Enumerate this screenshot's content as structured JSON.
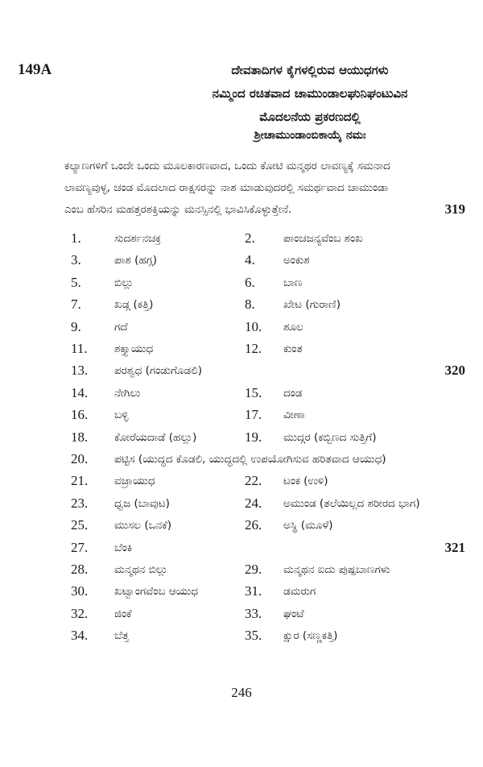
{
  "header": {
    "code": "149A",
    "title_lines": [
      "ದೇವತಾದಿಗಳ ಕೈಗಳಲ್ಲಿರುವ ಆಯುಧಗಳು",
      "ನಮ್ಮಿಂದ ರಚಿತವಾದ ಚಾಮುಂಡಾಲಘುನಿಘಂಟುವಿನ",
      "ಮೊದಲನೆಯ ಪ್ರಕರಣದಲ್ಲಿ",
      "ಶ್ರೀಚಾಮುಂಡಾಂಬಿಕಾಯೈ ನಮಃ"
    ]
  },
  "paragraph": {
    "lines": [
      "ಕಲ್ಯಾಣಗಳಿಗೆ ಒಂದೇ ಒಂದು ಮೂಲಕಾರಣವಾದ, ಒಂದು ಕೋಟಿ ಮನ್ಮಥರ ಲಾವಣ್ಯಕ್ಕೆ ಸಮನಾದ",
      "ಲಾವಣ್ಯವುಳ್ಳ, ಚಂಡ ಮೊದಲಾದ ರಾಕ್ಷಸರನ್ನು ನಾಶ ಮಾಡುವುದರಲ್ಲಿ ಸಮರ್ಥವಾದ ಚಾಮುಂಡಾ",
      "ಎಂಬ ಹೆಸರಿನ ಮಹತ್ತರಶಕ್ತಿಯನ್ನು ಮನಸ್ಸಿನಲ್ಲಿ ಭಾವಿಸಿಕೊಳ್ಳುತ್ತೇನೆ."
    ],
    "verse_no": "319"
  },
  "rows": [
    {
      "l": [
        "1.",
        "ಸುದರ್ಶನಚಕ್ರ"
      ],
      "r": [
        "2.",
        "ಪಾಂಚಜನ್ಯವೆಂಬ ಶಂಖ"
      ]
    },
    {
      "l": [
        "3.",
        "ಪಾಶ (ಹಗ್ಗ)"
      ],
      "r": [
        "4.",
        "ಅಂಕುಶ"
      ]
    },
    {
      "l": [
        "5.",
        "ಬಿಲ್ಲು"
      ],
      "r": [
        "6.",
        "ಬಾಣ"
      ]
    },
    {
      "l": [
        "7.",
        "ಖಡ್ಗ (ಕತ್ತಿ)"
      ],
      "r": [
        "8.",
        "ಖೇಟ (ಗುರಾಣಿ)"
      ]
    },
    {
      "l": [
        "9.",
        "ಗದೆ"
      ],
      "r": [
        "10.",
        "ಶೂಲ"
      ]
    },
    {
      "l": [
        "11.",
        "ಶಕ್ತ್ಯಾಯುಧ"
      ],
      "r": [
        "12.",
        "ಕುಂತ"
      ]
    },
    {
      "l": [
        "13.",
        "ಪರಶ್ವಧ (ಗಂಡುಗೊಡಲಿ)"
      ],
      "r": [
        "",
        ""
      ],
      "verse": "320"
    },
    {
      "l": [
        "14.",
        "ನೇಗಿಲು"
      ],
      "r": [
        "15.",
        "ದಂಡ"
      ]
    },
    {
      "l": [
        "16.",
        "ಬಳ್ಳಿ"
      ],
      "r": [
        "17.",
        "ವೀಣಾ"
      ]
    },
    {
      "l": [
        "18.",
        "ಕೋರೆಯದಾಡೆ (ಹಲ್ಲು)"
      ],
      "r": [
        "19.",
        "ಮುದ್ಗರ (ಕಬ್ಬಿಣದ ಸುತ್ತಿಗೆ)"
      ]
    },
    {
      "l": [
        "20.",
        "ಪಟ್ಟಿಸ (ಯುದ್ಧದ ಕೊಡಲಿ, ಯುದ್ಧದಲ್ಲಿ ಉಪಯೋಗಿಸುವ ಹರಿತವಾದ ಆಯುಧ)"
      ],
      "r": [
        "",
        ""
      ]
    },
    {
      "l": [
        "21.",
        "ವಜ್ರಾಯುಧ"
      ],
      "r": [
        "22.",
        "ಟಂಕ (ಉಳಿ)"
      ]
    },
    {
      "l": [
        "23.",
        "ಧ್ವಜ (ಬಾವುಟ)"
      ],
      "r": [
        "24.",
        "ಅಮುಂಡ (ತಲೆಯಿಲ್ಲದ ಶರೀರದ ಭಾಗ)"
      ]
    },
    {
      "l": [
        "25.",
        "ಮುಸಲ (ಒನಕೆ)"
      ],
      "r": [
        "26.",
        "ಅಸ್ಥಿ (ಮೂಳೆ)"
      ]
    },
    {
      "l": [
        "27.",
        "ಬೆಂಕಿ"
      ],
      "r": [
        "",
        ""
      ],
      "verse": "321"
    },
    {
      "l": [
        "28.",
        "ಮನ್ಮಥನ ಬಿಲ್ಲು"
      ],
      "r": [
        "29.",
        "ಮನ್ಮಥನ ಐದು ಪುಷ್ಪಬಾಣಗಳು"
      ]
    },
    {
      "l": [
        "30.",
        "ಖಟ್ವಾಂಗವೆಂಬ ಆಯುಧ"
      ],
      "r": [
        "31.",
        "ಡಮರುಗ"
      ]
    },
    {
      "l": [
        "32.",
        "ಜಿಂಕೆ"
      ],
      "r": [
        "33.",
        "ಘಂಟೆ"
      ]
    },
    {
      "l": [
        "34.",
        "ಬೆತ್ತ"
      ],
      "r": [
        "35.",
        "ಕ್ಷುರ (ಸಣ್ಣಕತ್ತಿ)"
      ]
    }
  ],
  "footer": {
    "page_number": "246"
  }
}
